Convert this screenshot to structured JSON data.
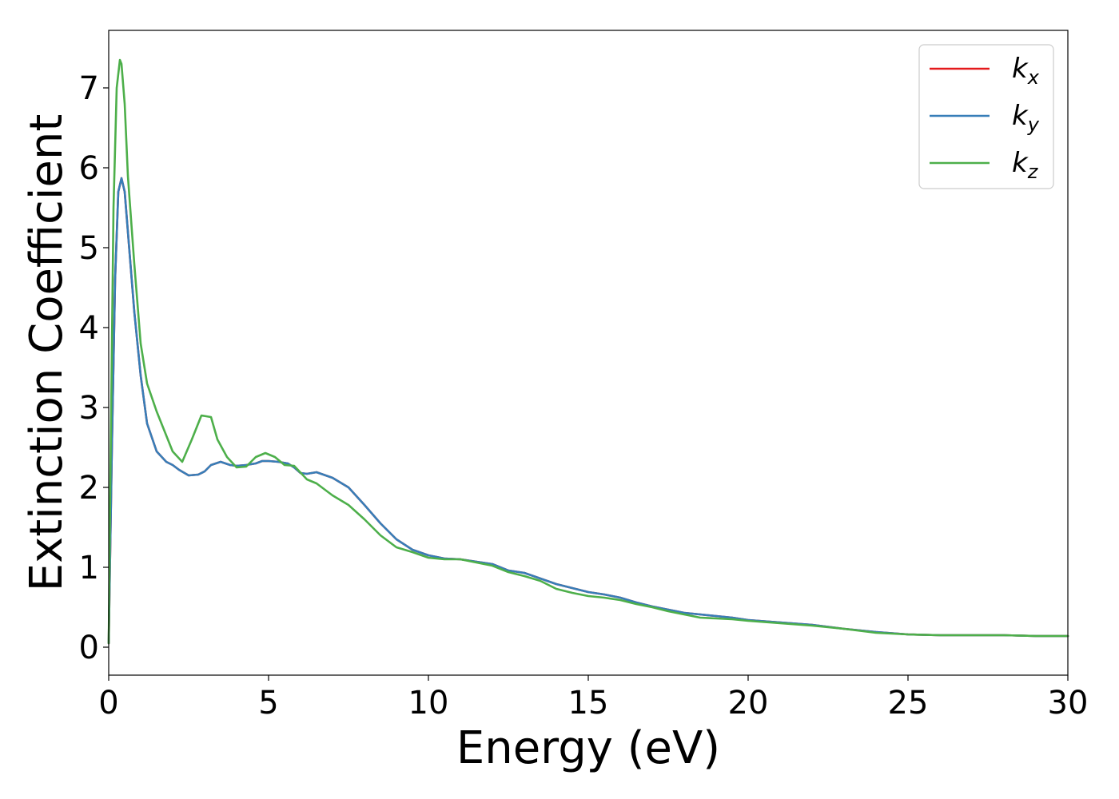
{
  "chart_data": {
    "type": "line",
    "xlabel": "Energy (eV)",
    "ylabel": "Extinction Coefficient",
    "xlim": [
      0,
      30
    ],
    "ylim": [
      -0.35,
      7.72
    ],
    "xticks": [
      0,
      5,
      10,
      15,
      20,
      25,
      30
    ],
    "yticks": [
      0,
      1,
      2,
      3,
      4,
      5,
      6,
      7
    ],
    "grid": false,
    "legend_position": "top-right",
    "series": [
      {
        "name": "k_x",
        "label_base": "k",
        "label_sub": "x",
        "color": "#e41a1c",
        "x": [
          0,
          0.1,
          0.2,
          0.3,
          0.4,
          0.5,
          0.6,
          0.8,
          1.0,
          1.2,
          1.5,
          1.8,
          2.0,
          2.2,
          2.5,
          2.8,
          3.0,
          3.2,
          3.5,
          3.8,
          4.0,
          4.3,
          4.6,
          4.8,
          5.0,
          5.3,
          5.6,
          5.8,
          6.0,
          6.2,
          6.5,
          7.0,
          7.5,
          8.0,
          8.5,
          9.0,
          9.5,
          10.0,
          10.5,
          11.0,
          11.5,
          12.0,
          12.5,
          13.0,
          13.5,
          14.0,
          14.5,
          15.0,
          15.5,
          16.0,
          16.5,
          17.0,
          17.5,
          18.0,
          18.5,
          19.0,
          19.5,
          20.0,
          21.0,
          22.0,
          23.0,
          24.0,
          25.0,
          26.0,
          27.0,
          28.0,
          29.0,
          30.0
        ],
        "values": [
          0.05,
          2.5,
          4.6,
          5.7,
          5.87,
          5.7,
          5.2,
          4.2,
          3.4,
          2.8,
          2.45,
          2.32,
          2.28,
          2.22,
          2.15,
          2.16,
          2.2,
          2.28,
          2.32,
          2.28,
          2.27,
          2.28,
          2.3,
          2.33,
          2.33,
          2.32,
          2.3,
          2.25,
          2.18,
          2.17,
          2.19,
          2.12,
          2.0,
          1.78,
          1.55,
          1.35,
          1.22,
          1.15,
          1.11,
          1.1,
          1.07,
          1.04,
          0.96,
          0.93,
          0.86,
          0.79,
          0.74,
          0.69,
          0.66,
          0.62,
          0.56,
          0.51,
          0.47,
          0.43,
          0.41,
          0.39,
          0.37,
          0.34,
          0.31,
          0.28,
          0.23,
          0.19,
          0.16,
          0.15,
          0.15,
          0.15,
          0.14,
          0.14
        ]
      },
      {
        "name": "k_y",
        "label_base": "k",
        "label_sub": "y",
        "color": "#377eb8",
        "x": [
          0,
          0.1,
          0.2,
          0.3,
          0.4,
          0.5,
          0.6,
          0.8,
          1.0,
          1.2,
          1.5,
          1.8,
          2.0,
          2.2,
          2.5,
          2.8,
          3.0,
          3.2,
          3.5,
          3.8,
          4.0,
          4.3,
          4.6,
          4.8,
          5.0,
          5.3,
          5.6,
          5.8,
          6.0,
          6.2,
          6.5,
          7.0,
          7.5,
          8.0,
          8.5,
          9.0,
          9.5,
          10.0,
          10.5,
          11.0,
          11.5,
          12.0,
          12.5,
          13.0,
          13.5,
          14.0,
          14.5,
          15.0,
          15.5,
          16.0,
          16.5,
          17.0,
          17.5,
          18.0,
          18.5,
          19.0,
          19.5,
          20.0,
          21.0,
          22.0,
          23.0,
          24.0,
          25.0,
          26.0,
          27.0,
          28.0,
          29.0,
          30.0
        ],
        "values": [
          0.05,
          2.5,
          4.6,
          5.7,
          5.87,
          5.7,
          5.2,
          4.2,
          3.4,
          2.8,
          2.45,
          2.32,
          2.28,
          2.22,
          2.15,
          2.16,
          2.2,
          2.28,
          2.32,
          2.28,
          2.27,
          2.28,
          2.3,
          2.33,
          2.33,
          2.32,
          2.3,
          2.25,
          2.18,
          2.17,
          2.19,
          2.12,
          2.0,
          1.78,
          1.55,
          1.35,
          1.22,
          1.15,
          1.11,
          1.1,
          1.07,
          1.04,
          0.96,
          0.93,
          0.86,
          0.79,
          0.74,
          0.69,
          0.66,
          0.62,
          0.56,
          0.51,
          0.47,
          0.43,
          0.41,
          0.39,
          0.37,
          0.34,
          0.31,
          0.28,
          0.23,
          0.19,
          0.16,
          0.15,
          0.15,
          0.15,
          0.14,
          0.14
        ]
      },
      {
        "name": "k_z",
        "label_base": "k",
        "label_sub": "z",
        "color": "#4daf4a",
        "x": [
          0,
          0.05,
          0.15,
          0.25,
          0.35,
          0.4,
          0.5,
          0.6,
          0.8,
          1.0,
          1.2,
          1.5,
          1.8,
          2.0,
          2.3,
          2.6,
          2.9,
          3.2,
          3.4,
          3.7,
          4.0,
          4.3,
          4.6,
          4.9,
          5.2,
          5.5,
          5.8,
          6.2,
          6.5,
          7.0,
          7.5,
          8.0,
          8.5,
          9.0,
          9.5,
          10.0,
          10.5,
          11.0,
          11.5,
          12.0,
          12.5,
          13.0,
          13.5,
          14.0,
          14.5,
          15.0,
          15.5,
          16.0,
          16.5,
          17.0,
          17.5,
          18.0,
          18.5,
          19.0,
          19.5,
          20.0,
          21.0,
          22.0,
          23.0,
          24.0,
          25.0,
          26.0,
          27.0,
          28.0,
          29.0,
          30.0
        ],
        "values": [
          0.05,
          2.0,
          5.5,
          7.0,
          7.35,
          7.3,
          6.8,
          5.9,
          4.8,
          3.8,
          3.3,
          2.95,
          2.65,
          2.45,
          2.32,
          2.6,
          2.9,
          2.88,
          2.6,
          2.38,
          2.25,
          2.26,
          2.38,
          2.43,
          2.38,
          2.28,
          2.27,
          2.1,
          2.05,
          1.9,
          1.78,
          1.6,
          1.4,
          1.25,
          1.19,
          1.12,
          1.1,
          1.1,
          1.06,
          1.02,
          0.94,
          0.89,
          0.83,
          0.73,
          0.68,
          0.64,
          0.62,
          0.59,
          0.54,
          0.5,
          0.45,
          0.41,
          0.37,
          0.36,
          0.35,
          0.33,
          0.3,
          0.27,
          0.23,
          0.18,
          0.16,
          0.15,
          0.15,
          0.15,
          0.14,
          0.14
        ]
      }
    ]
  }
}
